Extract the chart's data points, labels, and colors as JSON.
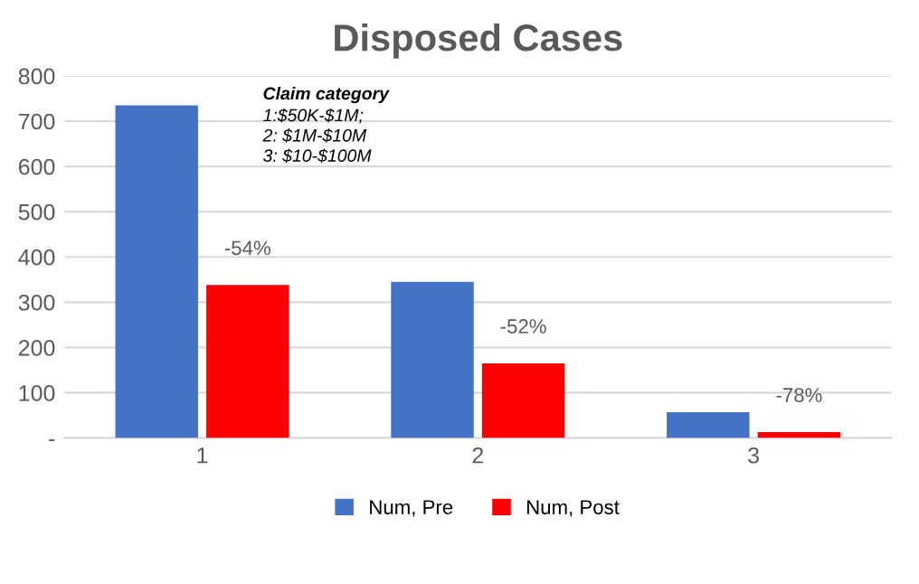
{
  "chart_data": {
    "type": "bar",
    "title": "Disposed Cases",
    "categories": [
      "1",
      "2",
      "3"
    ],
    "series": [
      {
        "name": "Num, Pre",
        "color": "#4472c4",
        "values": [
          735,
          345,
          57
        ]
      },
      {
        "name": "Num, Post",
        "color": "#ff0000",
        "values": [
          338,
          165,
          13
        ]
      }
    ],
    "ylim": [
      0,
      800
    ],
    "yticks": [
      {
        "value": 0,
        "label": "-"
      },
      100,
      200,
      300,
      400,
      500,
      600,
      700,
      800
    ],
    "grid": "y",
    "legend": "bottom",
    "annotations": [
      {
        "text": "-54%",
        "x": "1",
        "y": 338
      },
      {
        "text": "-52%",
        "x": "2",
        "y": 165
      },
      {
        "text": "-78%",
        "x": "3",
        "y": 13
      },
      "Claim category",
      "1:$50K-$1M;\n2: $1M-$10M\n3: $10-$100M"
    ]
  }
}
